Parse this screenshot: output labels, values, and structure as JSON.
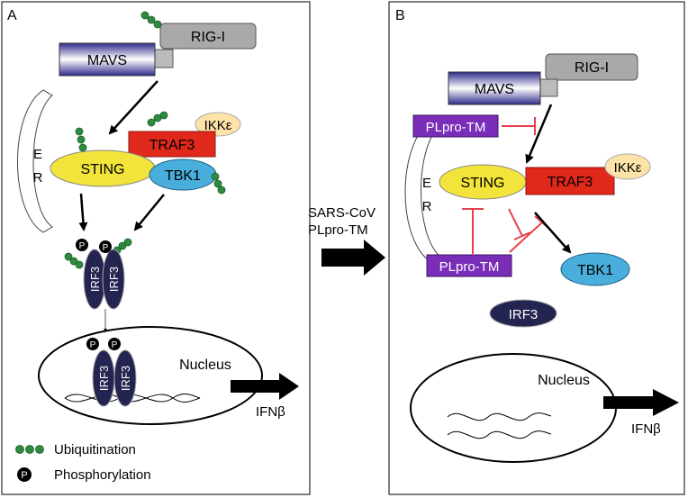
{
  "panel_a": {
    "label": "A",
    "rig_i": "RIG-I",
    "mavs": "MAVS",
    "er_letters": [
      "E",
      "R"
    ],
    "ikk": "IKKε",
    "traf3": "TRAF3",
    "sting": "STING",
    "tbk1": "TBK1",
    "p_symbol": "P",
    "irf3": "IRF3",
    "nucleus": "Nucleus",
    "ifnb": "IFNβ"
  },
  "legend": {
    "ubiquitination": "Ubiquitination",
    "phosphorylation": "Phosphorylation",
    "p_symbol": "P"
  },
  "middle": {
    "line1": "SARS-CoV",
    "line2": "PLpro-TM"
  },
  "panel_b": {
    "label": "B",
    "rig_i": "RIG-I",
    "mavs": "MAVS",
    "er_letters": [
      "E",
      "R"
    ],
    "plpro_top": "PLpro-TM",
    "plpro_bottom": "PLpro-TM",
    "sting": "STING",
    "traf3": "TRAF3",
    "ikk": "IKKε",
    "tbk1": "TBK1",
    "irf3": "IRF3",
    "nucleus": "Nucleus",
    "ifnb": "IFNβ"
  },
  "colors": {
    "sting": "#f2e43a",
    "traf3": "#e0281b",
    "tbk1": "#4aaedc",
    "ikk": "#fde3a8",
    "rig_i": "#a9a9a9",
    "plpro": "#7a2db8",
    "irf3": "#23244f",
    "ubiquitin": "#2e8b3e",
    "inhibition": "#e8404a"
  }
}
